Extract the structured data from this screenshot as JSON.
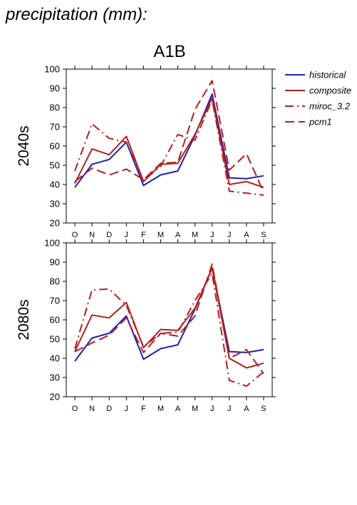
{
  "figure": {
    "title": "precipitation (mm):",
    "scenario": "A1B"
  },
  "legend": [
    {
      "name": "historical",
      "color": "#1f1fb4",
      "dash": "solid"
    },
    {
      "name": "composite",
      "color": "#b41f1f",
      "dash": "solid"
    },
    {
      "name": "miroc_3.2",
      "color": "#b41f1f",
      "dash": "dashdot"
    },
    {
      "name": "pcm1",
      "color": "#b41f1f",
      "dash": "dashed"
    }
  ],
  "chart_data": [
    {
      "type": "line",
      "title": "A1B",
      "row_label": "2040s",
      "categories": [
        "O",
        "N",
        "D",
        "J",
        "F",
        "M",
        "A",
        "M",
        "J",
        "J",
        "A",
        "S"
      ],
      "ylim": [
        20,
        100
      ],
      "yticks": [
        20,
        30,
        40,
        50,
        60,
        70,
        80,
        90,
        100
      ],
      "series": [
        {
          "name": "historical",
          "values": [
            38.5,
            50.5,
            53,
            62,
            39.5,
            45,
            47,
            65.5,
            87,
            43.5,
            43,
            44.5
          ]
        },
        {
          "name": "composite",
          "values": [
            40.5,
            58.5,
            55.5,
            65,
            41.5,
            50.5,
            51,
            66,
            85,
            40,
            41.5,
            38.5
          ]
        },
        {
          "name": "miroc_3.2",
          "values": [
            47,
            71.5,
            64,
            62,
            42,
            49.5,
            66,
            63,
            84,
            36.5,
            35.5,
            34.5
          ]
        },
        {
          "name": "pcm1",
          "values": [
            41.5,
            48.5,
            45,
            48,
            42.5,
            51,
            51.5,
            79,
            94,
            47.5,
            56,
            36
          ]
        }
      ]
    },
    {
      "type": "line",
      "title": "",
      "row_label": "2080s",
      "categories": [
        "O",
        "N",
        "D",
        "J",
        "F",
        "M",
        "A",
        "M",
        "J",
        "J",
        "A",
        "S"
      ],
      "ylim": [
        20,
        100
      ],
      "yticks": [
        20,
        30,
        40,
        50,
        60,
        70,
        80,
        90,
        100
      ],
      "series": [
        {
          "name": "historical",
          "values": [
            38.5,
            50.5,
            53,
            62,
            39.5,
            45,
            47,
            65.5,
            87,
            43.5,
            43,
            44.5
          ]
        },
        {
          "name": "composite",
          "values": [
            43.5,
            62.5,
            61,
            69,
            45.5,
            55,
            54.5,
            66,
            87,
            40,
            35,
            37.5
          ]
        },
        {
          "name": "miroc_3.2",
          "values": [
            45,
            75.5,
            76,
            67.5,
            46,
            53,
            53.5,
            70,
            84,
            28.5,
            25.5,
            33
          ]
        },
        {
          "name": "pcm1",
          "values": [
            43.5,
            48,
            52,
            61,
            43,
            53,
            51.5,
            62,
            89,
            40,
            44.5,
            32
          ]
        }
      ]
    }
  ]
}
